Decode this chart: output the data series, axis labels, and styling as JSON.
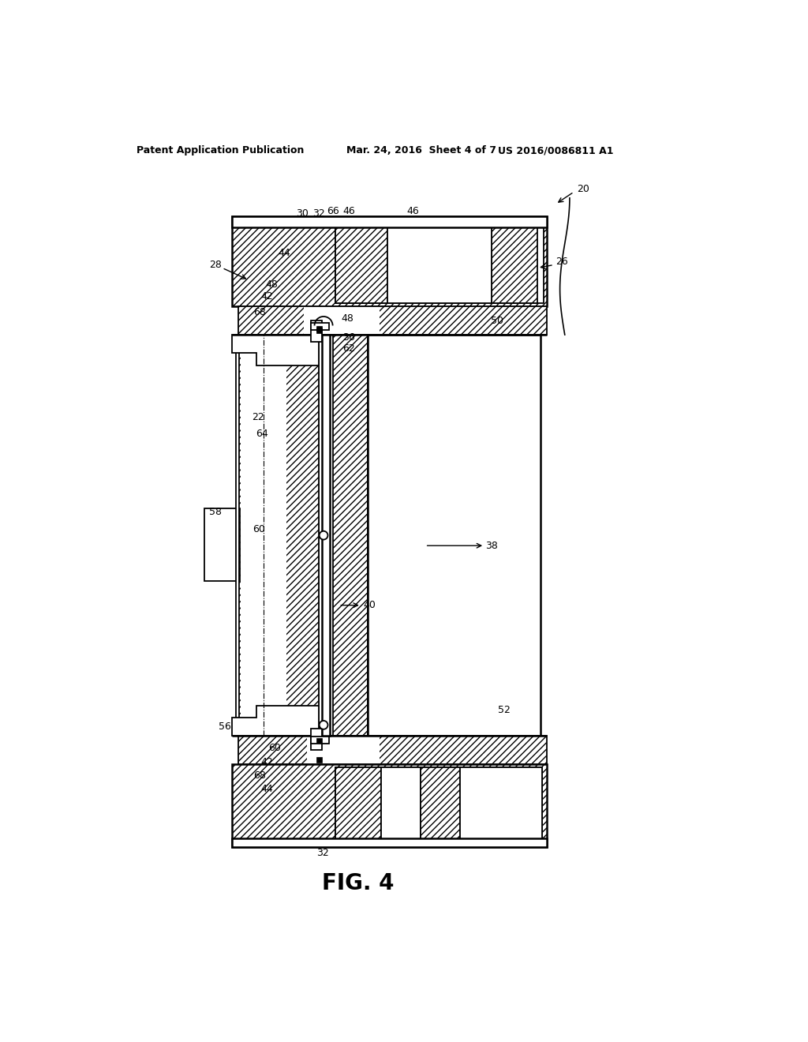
{
  "title_left": "Patent Application Publication",
  "title_mid": "Mar. 24, 2016  Sheet 4 of 7",
  "title_right": "US 2016/0086811 A1",
  "fig_label": "FIG. 4",
  "bg_color": "#ffffff",
  "line_color": "#000000"
}
